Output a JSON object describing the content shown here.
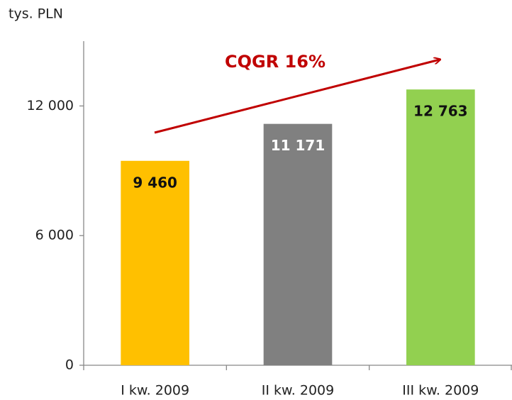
{
  "chart_data": {
    "type": "bar",
    "y_label": "tys. PLN",
    "annotation": "CQGR 16%",
    "categories": [
      "I kw. 2009",
      "II kw. 2009",
      "III kw. 2009"
    ],
    "values": [
      9460,
      11171,
      12763
    ],
    "value_labels": [
      "9 460",
      "11 171",
      "12 763"
    ],
    "colors": [
      "#ffc000",
      "#808080",
      "#92d050"
    ],
    "label_colors": [
      "#111111",
      "#ffffff",
      "#111111"
    ],
    "ylim": [
      0,
      15000
    ],
    "yticks": [
      0,
      {
        "value": 6000,
        "label": "6 000"
      },
      {
        "value": 12000,
        "label": "12 000"
      }
    ],
    "grid": false
  }
}
